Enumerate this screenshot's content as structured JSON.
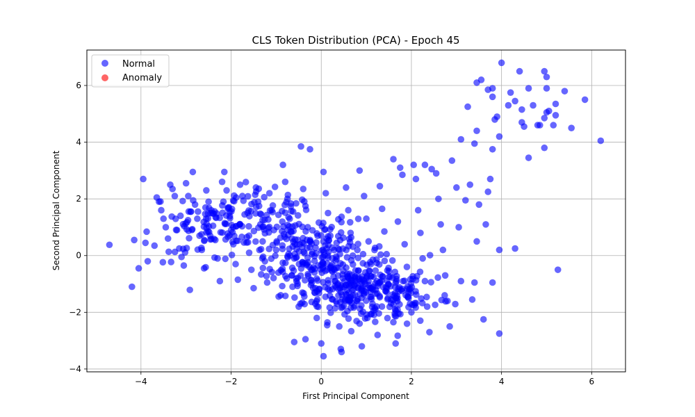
{
  "chart_data": {
    "type": "scatter",
    "title": "CLS Token Distribution (PCA) - Epoch 45",
    "xlabel": "First Principal Component",
    "ylabel": "Second Principal Component",
    "xlim": [
      -5.2,
      6.75
    ],
    "ylim": [
      -4.1,
      7.25
    ],
    "xticks": [
      -4,
      -2,
      0,
      2,
      4,
      6
    ],
    "yticks": [
      -4,
      -2,
      0,
      2,
      4,
      6
    ],
    "grid": true,
    "legend_position": "top-left",
    "series": [
      {
        "name": "Normal",
        "color": "#0000ff",
        "alpha": 0.6,
        "points": [
          [
            -4.7,
            0.38
          ],
          [
            -4.15,
            0.55
          ],
          [
            -4.2,
            -1.1
          ],
          [
            -4.05,
            -0.45
          ],
          [
            -3.95,
            2.7
          ],
          [
            -3.9,
            0.45
          ],
          [
            -3.85,
            -0.2
          ],
          [
            -3.7,
            0.35
          ],
          [
            -3.65,
            2.05
          ],
          [
            -3.6,
            1.9
          ],
          [
            -3.55,
            1.6
          ],
          [
            -3.5,
            1.3
          ],
          [
            -3.45,
            1.0
          ],
          [
            -3.4,
            0.6
          ],
          [
            -3.35,
            2.5
          ],
          [
            -3.3,
            2.35
          ],
          [
            -3.25,
            2.1
          ],
          [
            -3.2,
            0.9
          ],
          [
            -3.15,
            0.25
          ],
          [
            -3.1,
            -0.05
          ],
          [
            -3.05,
            -0.35
          ],
          [
            -3.0,
            2.55
          ],
          [
            -2.95,
            2.1
          ],
          [
            -2.9,
            1.55
          ],
          [
            -2.85,
            2.95
          ],
          [
            -2.8,
            1.8
          ],
          [
            -2.75,
            1.3
          ],
          [
            -2.7,
            0.7
          ],
          [
            -2.65,
            0.2
          ],
          [
            -2.6,
            -0.45
          ],
          [
            -2.55,
            2.3
          ],
          [
            -2.5,
            1.9
          ],
          [
            -2.45,
            1.5
          ],
          [
            -2.4,
            1.05
          ],
          [
            -2.35,
            0.55
          ],
          [
            -2.3,
            -0.1
          ],
          [
            -2.25,
            -0.9
          ],
          [
            -2.2,
            2.6
          ],
          [
            -2.15,
            2.95
          ],
          [
            -2.1,
            2.3
          ],
          [
            -2.05,
            1.7
          ],
          [
            -2.0,
            0.9
          ],
          [
            -1.95,
            0.4
          ],
          [
            -1.9,
            -0.3
          ],
          [
            -1.85,
            -0.85
          ],
          [
            -1.8,
            2.5
          ],
          [
            -1.75,
            2.1
          ],
          [
            -1.7,
            1.45
          ],
          [
            -1.65,
            0.65
          ],
          [
            -1.6,
            0.1
          ],
          [
            -1.55,
            -0.5
          ],
          [
            -1.5,
            -1.15
          ],
          [
            -1.45,
            2.4
          ],
          [
            -1.4,
            1.9
          ],
          [
            -1.35,
            1.1
          ],
          [
            -1.3,
            0.5
          ],
          [
            -1.25,
            -0.2
          ],
          [
            -1.2,
            -0.95
          ],
          [
            -1.15,
            2.2
          ],
          [
            -1.1,
            1.6
          ],
          [
            -1.05,
            0.9
          ],
          [
            -1.0,
            0.2
          ],
          [
            -0.95,
            -0.6
          ],
          [
            -0.9,
            -1.4
          ],
          [
            -0.85,
            3.2
          ],
          [
            -0.8,
            2.6
          ],
          [
            -0.75,
            2.0
          ],
          [
            -0.7,
            1.3
          ],
          [
            -0.65,
            0.6
          ],
          [
            -0.6,
            -0.1
          ],
          [
            -0.55,
            -0.9
          ],
          [
            -0.5,
            -1.8
          ],
          [
            -0.45,
            3.85
          ],
          [
            -0.4,
            2.35
          ],
          [
            -0.35,
            1.75
          ],
          [
            -0.3,
            1.0
          ],
          [
            -0.25,
            0.3
          ],
          [
            -0.2,
            -0.5
          ],
          [
            -0.15,
            -1.3
          ],
          [
            -0.1,
            -2.2
          ],
          [
            -0.25,
            3.75
          ],
          [
            0.05,
            2.95
          ],
          [
            0.1,
            2.2
          ],
          [
            0.15,
            1.5
          ],
          [
            0.2,
            0.7
          ],
          [
            0.25,
            -0.1
          ],
          [
            0.3,
            -0.9
          ],
          [
            0.35,
            -1.7
          ],
          [
            0.4,
            -2.5
          ],
          [
            0.45,
            -3.4
          ],
          [
            0.05,
            -3.55
          ],
          [
            0.0,
            -3.1
          ],
          [
            -0.35,
            -2.95
          ],
          [
            -0.6,
            -3.05
          ],
          [
            0.55,
            2.4
          ],
          [
            0.6,
            1.6
          ],
          [
            0.65,
            0.8
          ],
          [
            0.7,
            0.0
          ],
          [
            0.75,
            -0.8
          ],
          [
            0.8,
            -1.6
          ],
          [
            0.85,
            -2.4
          ],
          [
            0.9,
            -3.2
          ],
          [
            0.85,
            3.0
          ],
          [
            0.95,
            2.1
          ],
          [
            1.0,
            1.3
          ],
          [
            1.05,
            0.5
          ],
          [
            1.1,
            -0.3
          ],
          [
            1.15,
            -1.1
          ],
          [
            1.2,
            -1.9
          ],
          [
            1.25,
            -2.8
          ],
          [
            1.3,
            2.45
          ],
          [
            1.35,
            1.65
          ],
          [
            1.4,
            0.85
          ],
          [
            1.45,
            0.05
          ],
          [
            1.5,
            -0.75
          ],
          [
            1.55,
            -1.55
          ],
          [
            1.6,
            -2.35
          ],
          [
            1.65,
            -3.1
          ],
          [
            1.6,
            3.4
          ],
          [
            1.75,
            3.1
          ],
          [
            1.8,
            2.85
          ],
          [
            1.7,
            1.2
          ],
          [
            1.85,
            0.4
          ],
          [
            1.9,
            -0.4
          ],
          [
            1.95,
            -1.2
          ],
          [
            2.0,
            -2.0
          ],
          [
            2.05,
            3.2
          ],
          [
            2.1,
            2.7
          ],
          [
            2.15,
            1.6
          ],
          [
            2.2,
            0.8
          ],
          [
            2.25,
            -0.1
          ],
          [
            2.3,
            -0.9
          ],
          [
            2.35,
            -1.8
          ],
          [
            2.4,
            -2.7
          ],
          [
            2.3,
            3.2
          ],
          [
            2.45,
            3.05
          ],
          [
            2.55,
            2.9
          ],
          [
            2.6,
            2.0
          ],
          [
            2.65,
            1.1
          ],
          [
            2.7,
            0.2
          ],
          [
            2.75,
            -0.7
          ],
          [
            2.8,
            -1.6
          ],
          [
            2.85,
            -2.5
          ],
          [
            2.9,
            3.35
          ],
          [
            3.0,
            2.4
          ],
          [
            3.05,
            1.0
          ],
          [
            3.1,
            -0.9
          ],
          [
            3.2,
            1.95
          ],
          [
            3.25,
            5.25
          ],
          [
            3.3,
            2.5
          ],
          [
            3.35,
            -1.55
          ],
          [
            3.4,
            -0.95
          ],
          [
            3.45,
            0.5
          ],
          [
            3.5,
            1.8
          ],
          [
            3.6,
            -2.25
          ],
          [
            3.65,
            1.1
          ],
          [
            3.7,
            2.25
          ],
          [
            3.75,
            2.7
          ],
          [
            3.8,
            -0.95
          ],
          [
            3.8,
            3.75
          ],
          [
            3.95,
            0.2
          ],
          [
            4.3,
            0.25
          ],
          [
            3.95,
            -2.75
          ],
          [
            3.45,
            6.1
          ],
          [
            3.55,
            6.2
          ],
          [
            3.7,
            5.85
          ],
          [
            3.8,
            5.9
          ],
          [
            3.8,
            5.6
          ],
          [
            3.9,
            4.9
          ],
          [
            3.85,
            4.8
          ],
          [
            3.95,
            4.2
          ],
          [
            4.0,
            6.8
          ],
          [
            4.15,
            5.3
          ],
          [
            4.2,
            5.75
          ],
          [
            4.3,
            5.45
          ],
          [
            4.4,
            6.5
          ],
          [
            4.45,
            5.15
          ],
          [
            4.45,
            4.7
          ],
          [
            4.5,
            4.55
          ],
          [
            4.6,
            5.9
          ],
          [
            4.6,
            3.45
          ],
          [
            4.7,
            5.3
          ],
          [
            4.8,
            4.6
          ],
          [
            4.85,
            4.6
          ],
          [
            4.95,
            4.85
          ],
          [
            4.95,
            6.5
          ],
          [
            5.0,
            6.3
          ],
          [
            5.0,
            5.9
          ],
          [
            5.0,
            5.05
          ],
          [
            4.95,
            3.8
          ],
          [
            5.05,
            5.1
          ],
          [
            5.15,
            4.6
          ],
          [
            5.2,
            4.95
          ],
          [
            5.2,
            5.35
          ],
          [
            5.4,
            5.8
          ],
          [
            5.55,
            4.5
          ],
          [
            5.85,
            5.5
          ],
          [
            6.2,
            4.05
          ],
          [
            5.25,
            -0.5
          ],
          [
            3.1,
            4.1
          ],
          [
            3.4,
            3.95
          ],
          [
            3.45,
            4.4
          ]
        ],
        "cluster_note_points": [
          [
            -0.2,
            -0.4
          ],
          [
            0.1,
            -0.7
          ],
          [
            0.4,
            -1.0
          ],
          [
            0.7,
            -1.3
          ],
          [
            1.0,
            -1.6
          ],
          [
            0.3,
            0.2
          ],
          [
            -0.5,
            0.5
          ],
          [
            -1.2,
            1.2
          ],
          [
            -2.0,
            1.4
          ],
          [
            -2.6,
            0.8
          ],
          [
            1.3,
            -1.0
          ],
          [
            1.8,
            -1.4
          ]
        ]
      },
      {
        "name": "Anomaly",
        "color": "#ff0000",
        "alpha": 0.6,
        "points": []
      }
    ]
  }
}
